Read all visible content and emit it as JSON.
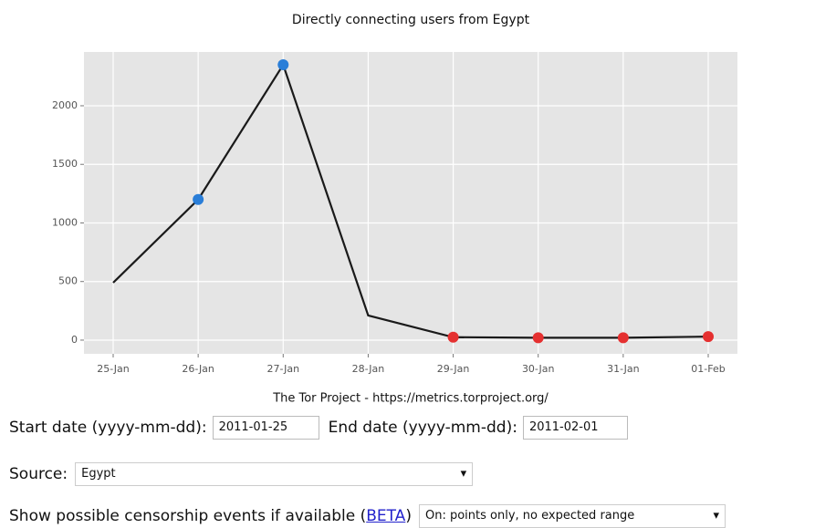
{
  "chart_data": {
    "type": "line",
    "title": "Directly connecting users from Egypt",
    "caption": "The Tor Project - https://metrics.torproject.org/",
    "categories": [
      "25-Jan",
      "26-Jan",
      "27-Jan",
      "28-Jan",
      "29-Jan",
      "30-Jan",
      "31-Jan",
      "01-Feb"
    ],
    "series": [
      {
        "color": "#1a1a1a",
        "values": [
          490,
          1200,
          2350,
          210,
          25,
          20,
          20,
          30
        ],
        "point_colors": [
          null,
          "#2a7ed8",
          "#2a7ed8",
          null,
          "#e53030",
          "#e53030",
          "#e53030",
          "#e53030"
        ]
      }
    ],
    "ylim": [
      -117,
      2459
    ],
    "yticks": [
      0,
      500,
      1000,
      1500,
      2000
    ],
    "grid": true
  },
  "form": {
    "start_label": "Start date (yyyy-mm-dd):",
    "start_value": "2011-01-25",
    "end_label": "End date (yyyy-mm-dd):",
    "end_value": "2011-02-01",
    "source_label": "Source:",
    "source_value": "Egypt",
    "events_label": "Show possible censorship events if available (",
    "events_link": "BETA",
    "events_label_end": ")",
    "events_value": "On: points only, no expected range"
  }
}
